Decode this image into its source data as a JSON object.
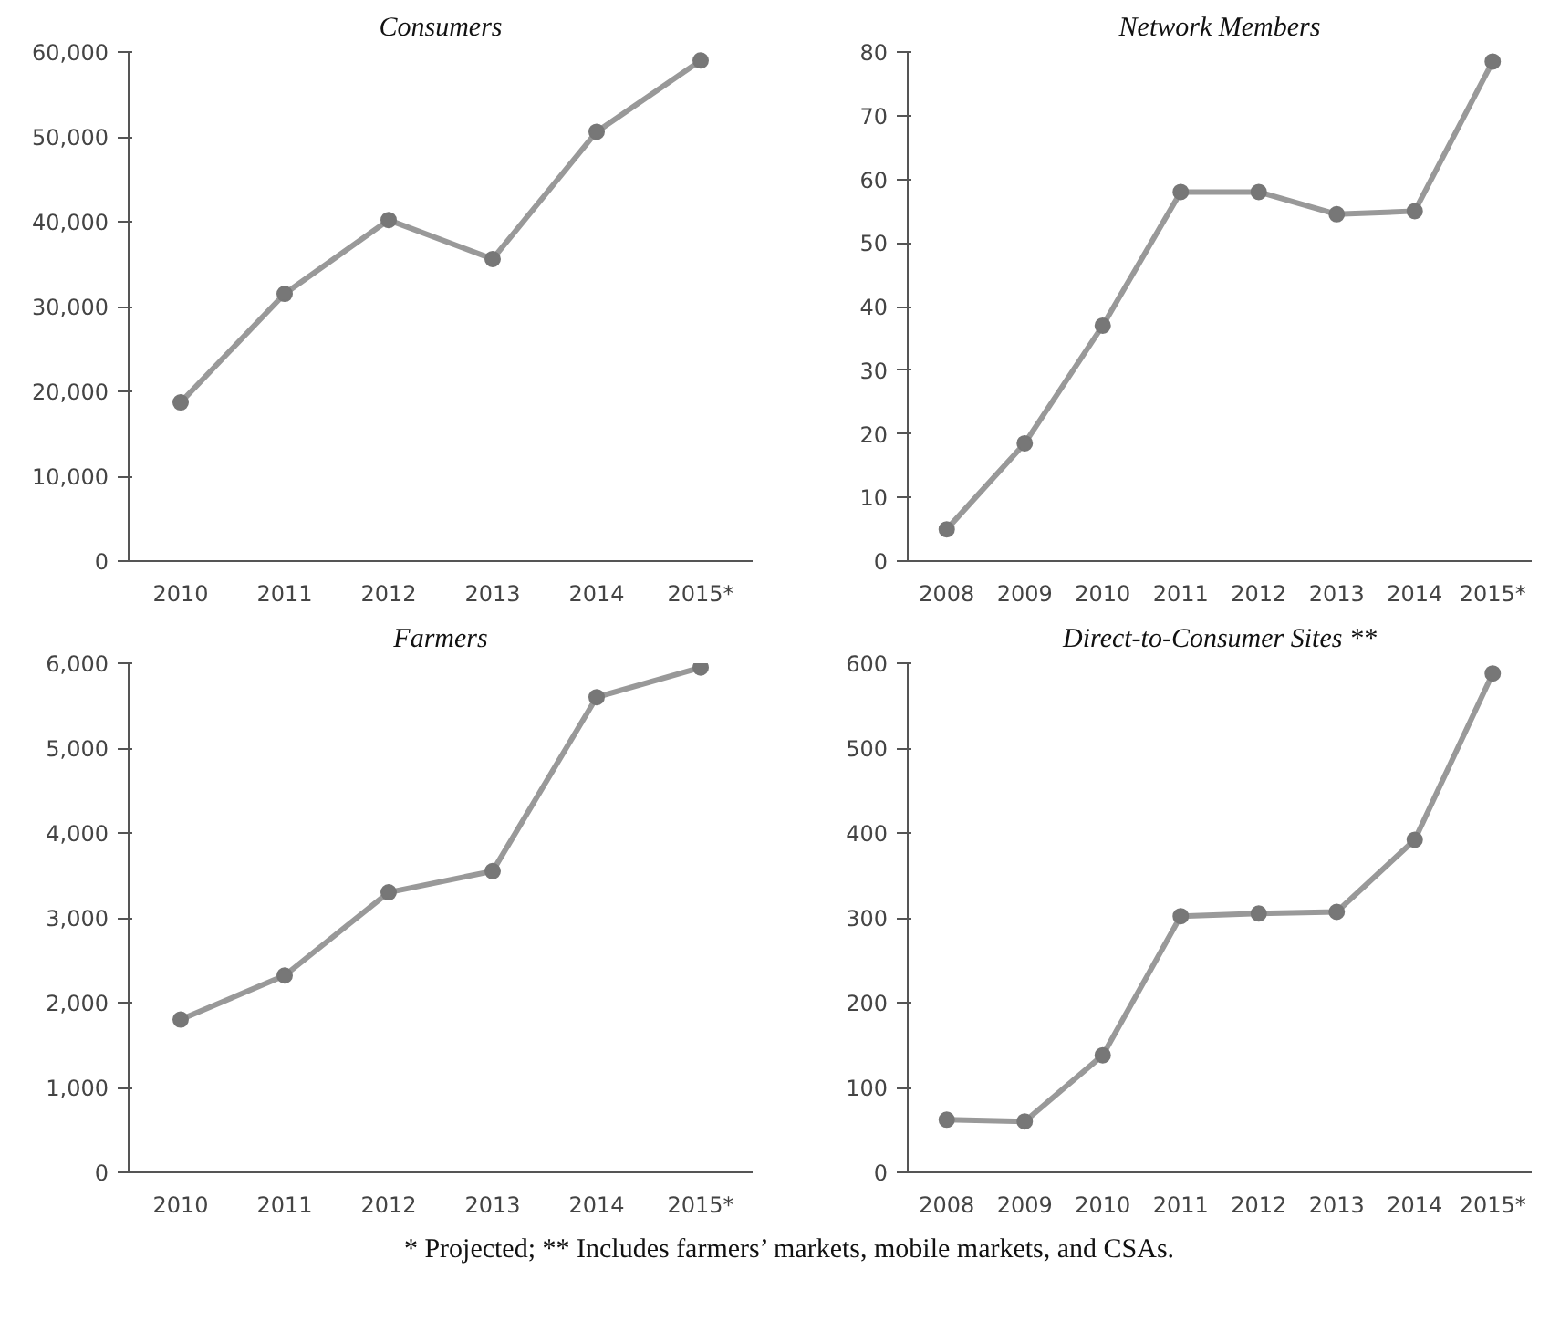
{
  "chart_data": [
    {
      "type": "line",
      "title": "Consumers",
      "categories": [
        "2010",
        "2011",
        "2012",
        "2013",
        "2014",
        "2015*"
      ],
      "series": [
        {
          "color": "#999999",
          "values": [
            18700,
            31500,
            40200,
            35600,
            50600,
            59000
          ]
        }
      ],
      "ylim": [
        0,
        60000
      ],
      "yticks": [
        0,
        {
          "value": 10000,
          "label": "10,000"
        },
        {
          "value": 20000,
          "label": "20,000"
        },
        {
          "value": 30000,
          "label": "30,000"
        },
        {
          "value": 40000,
          "label": "40,000"
        },
        {
          "value": 50000,
          "label": "50,000"
        },
        {
          "value": 60000,
          "label": "60,000"
        }
      ],
      "grid": false,
      "marker": "circle",
      "line_style": "solid"
    },
    {
      "type": "line",
      "title": "Network Members",
      "categories": [
        "2008",
        "2009",
        "2010",
        "2011",
        "2012",
        "2013",
        "2014",
        "2015*"
      ],
      "series": [
        {
          "color": "#999999",
          "values": [
            5,
            18.5,
            37,
            58,
            58,
            54.5,
            55,
            78.5
          ]
        }
      ],
      "ylim": [
        0,
        80
      ],
      "yticks": [
        0,
        10,
        20,
        30,
        40,
        50,
        60,
        70,
        80
      ],
      "grid": false,
      "marker": "circle",
      "line_style": "solid"
    },
    {
      "type": "line",
      "title": "Farmers",
      "categories": [
        "2010",
        "2011",
        "2012",
        "2013",
        "2014",
        "2015*"
      ],
      "series": [
        {
          "color": "#999999",
          "values": [
            1800,
            2320,
            3300,
            3550,
            5600,
            5950
          ]
        }
      ],
      "ylim": [
        0,
        6000
      ],
      "yticks": [
        0,
        {
          "value": 1000,
          "label": "1,000"
        },
        {
          "value": 2000,
          "label": "2,000"
        },
        {
          "value": 3000,
          "label": "3,000"
        },
        {
          "value": 4000,
          "label": "4,000"
        },
        {
          "value": 5000,
          "label": "5,000"
        },
        {
          "value": 6000,
          "label": "6,000"
        }
      ],
      "grid": false,
      "marker": "circle",
      "line_style": "solid"
    },
    {
      "type": "line",
      "title": "Direct-to-Consumer Sites **",
      "categories": [
        "2008",
        "2009",
        "2010",
        "2011",
        "2012",
        "2013",
        "2014",
        "2015*"
      ],
      "series": [
        {
          "color": "#999999",
          "values": [
            62,
            60,
            138,
            302,
            305,
            307,
            392,
            588
          ]
        }
      ],
      "ylim": [
        0,
        600
      ],
      "yticks": [
        0,
        100,
        200,
        300,
        400,
        500,
        600
      ],
      "grid": false,
      "marker": "circle",
      "line_style": "solid",
      "annotations": [
        "* Projected; ** Includes farmers’ markets, mobile markets, and CSAs."
      ]
    }
  ]
}
